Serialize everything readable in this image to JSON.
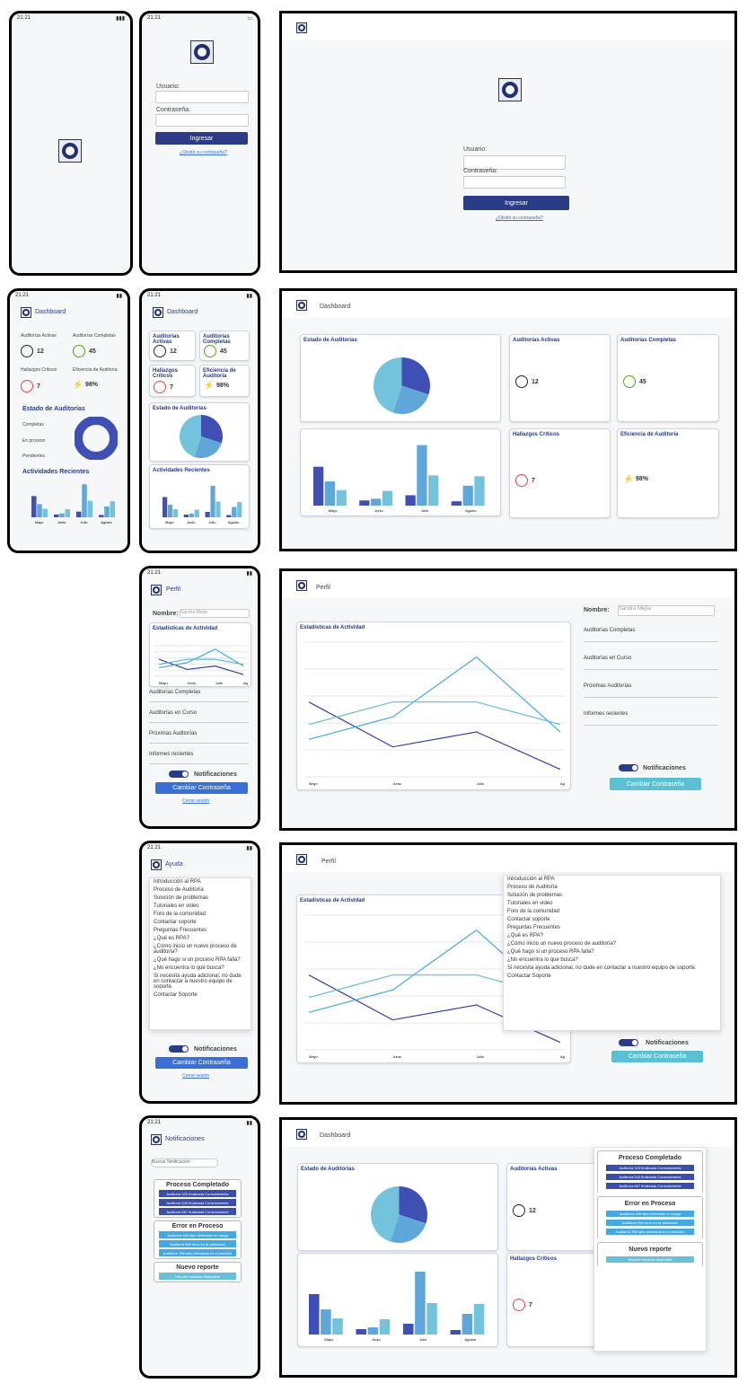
{
  "status_time": "21:21",
  "login": {
    "user_label": "Usuario:",
    "pass_label": "Contraseña:",
    "button": "Ingresar",
    "forgot": "¿Olvidó su contraseña?"
  },
  "dashboard": {
    "title": "Dashboard",
    "active_label": "Auditorías Activas",
    "active_value": "12",
    "completed_label": "Auditorías Completas",
    "completed_value": "45",
    "findings_label": "Hallazgos Críticos",
    "findings_value": "7",
    "efficiency_label": "Eficiencia de Auditoría",
    "efficiency_value": "98%",
    "status_title": "Estado de Auditorías",
    "recent_title": "Actividades Recientes",
    "legend": [
      "Completas",
      "En proceso",
      "Pendientes"
    ],
    "mobile_list": [
      "Completas",
      "En proceso",
      "Pendientes"
    ]
  },
  "profile": {
    "title": "Perfil",
    "name_label": "Nombre:",
    "name_placeholder": "Sandra Mejía",
    "chart_title": "Estadísticas de Actividad",
    "sections": [
      "Auditorías Completas",
      "Auditorías en Curso",
      "Próximas Auditorías",
      "Informes recientes"
    ],
    "notifications": "Notificaciones",
    "change_password": "Cambiar Contraseña",
    "logout": "Cerrar sesión"
  },
  "help": {
    "title": "Ayuda",
    "items": [
      "Introducción al RPA",
      "Proceso de Auditoría",
      "Solución de problemas",
      "Tutoriales en video",
      "Foro de la comunidad",
      "Contactar soporte",
      "Preguntas Frecuentes",
      "¿Qué es RPA?",
      "¿Cómo inicio un nuevo proceso de auditoría?",
      "¿Qué hago si un proceso RPA falla?",
      "¿No encuentra lo que busca?",
      "Si necesita ayuda adicional, no dude en contactar a nuestro equipo de soporte.",
      "Contactar Soporte"
    ]
  },
  "notifications": {
    "title": "Notificaciones",
    "search_placeholder": "Buscar Notificación",
    "completed_title": "Proceso Completado",
    "completed_items": [
      "Auditoría 323 finalizada Correctamente",
      "Auditoría 543 finalizada Correctamente",
      "Auditoría 667 finalizada Correctamente"
    ],
    "error_title": "Error en Proceso",
    "error_items": [
      "Auditoría 456 fallo detectado en carga",
      "Auditoría 554 error en la validación",
      "Auditoría 789 fallo detectado en el servidor"
    ],
    "report_title": "Nuevo reporte",
    "report_items": [
      "Reporte mensual disponible"
    ]
  },
  "chart_data": [
    {
      "type": "pie",
      "title": "Estado de Auditorías",
      "categories": [
        "Completas",
        "En proceso",
        "Pendientes"
      ],
      "values": [
        30,
        25,
        45
      ],
      "colors": [
        "#3f4fb3",
        "#5fa7d8",
        "#74c3dc"
      ]
    },
    {
      "type": "bar",
      "categories": [
        "Mayo",
        "Junio",
        "Julio",
        "Agosto"
      ],
      "series": [
        {
          "name": "Completas",
          "values": [
            45,
            6,
            12,
            5
          ]
        },
        {
          "name": "En proceso",
          "values": [
            28,
            8,
            70,
            23
          ]
        },
        {
          "name": "Pendientes",
          "values": [
            18,
            17,
            35,
            34
          ]
        }
      ],
      "ylim": [
        0,
        80
      ]
    },
    {
      "type": "line",
      "title": "Estadísticas de Actividad",
      "categories": [
        "Mayo",
        "Junio",
        "Julio",
        "Agosto"
      ],
      "series": [
        {
          "name": "Completas",
          "values": [
            50,
            20,
            30,
            5
          ]
        },
        {
          "name": "En proceso",
          "values": [
            25,
            40,
            80,
            30
          ]
        },
        {
          "name": "Pendientes",
          "values": [
            35,
            50,
            50,
            35
          ]
        }
      ],
      "ylim": [
        0,
        90
      ]
    }
  ],
  "colors": {
    "primary": "#2b3c86",
    "accent": "#3f4fb3",
    "light": "#74c3dc"
  }
}
